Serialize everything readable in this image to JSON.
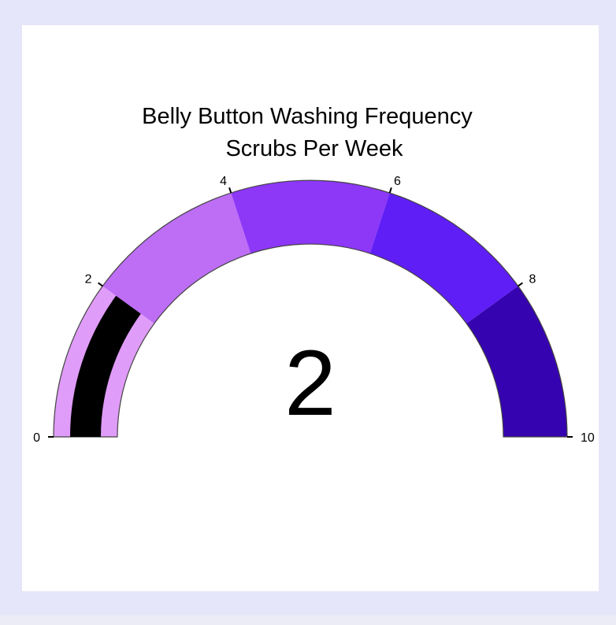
{
  "chart_data": {
    "type": "gauge",
    "title": "Belly Button Washing Frequency",
    "subtitle": "Scrubs Per Week",
    "value": 2,
    "value_label": "2",
    "range": [
      0,
      10
    ],
    "tick_values": [
      0,
      2,
      4,
      6,
      8,
      10
    ],
    "tick_labels": [
      "0",
      "2",
      "4",
      "6",
      "8",
      "10"
    ],
    "steps": [
      {
        "range": [
          0,
          2
        ],
        "color": "#e09cf9"
      },
      {
        "range": [
          2,
          4
        ],
        "color": "#bd6ef5"
      },
      {
        "range": [
          4,
          6
        ],
        "color": "#8d37f7"
      },
      {
        "range": [
          6,
          8
        ],
        "color": "#5f1ef5"
      },
      {
        "range": [
          8,
          10
        ],
        "color": "#3603b0"
      }
    ],
    "bar_color": "#000000"
  }
}
